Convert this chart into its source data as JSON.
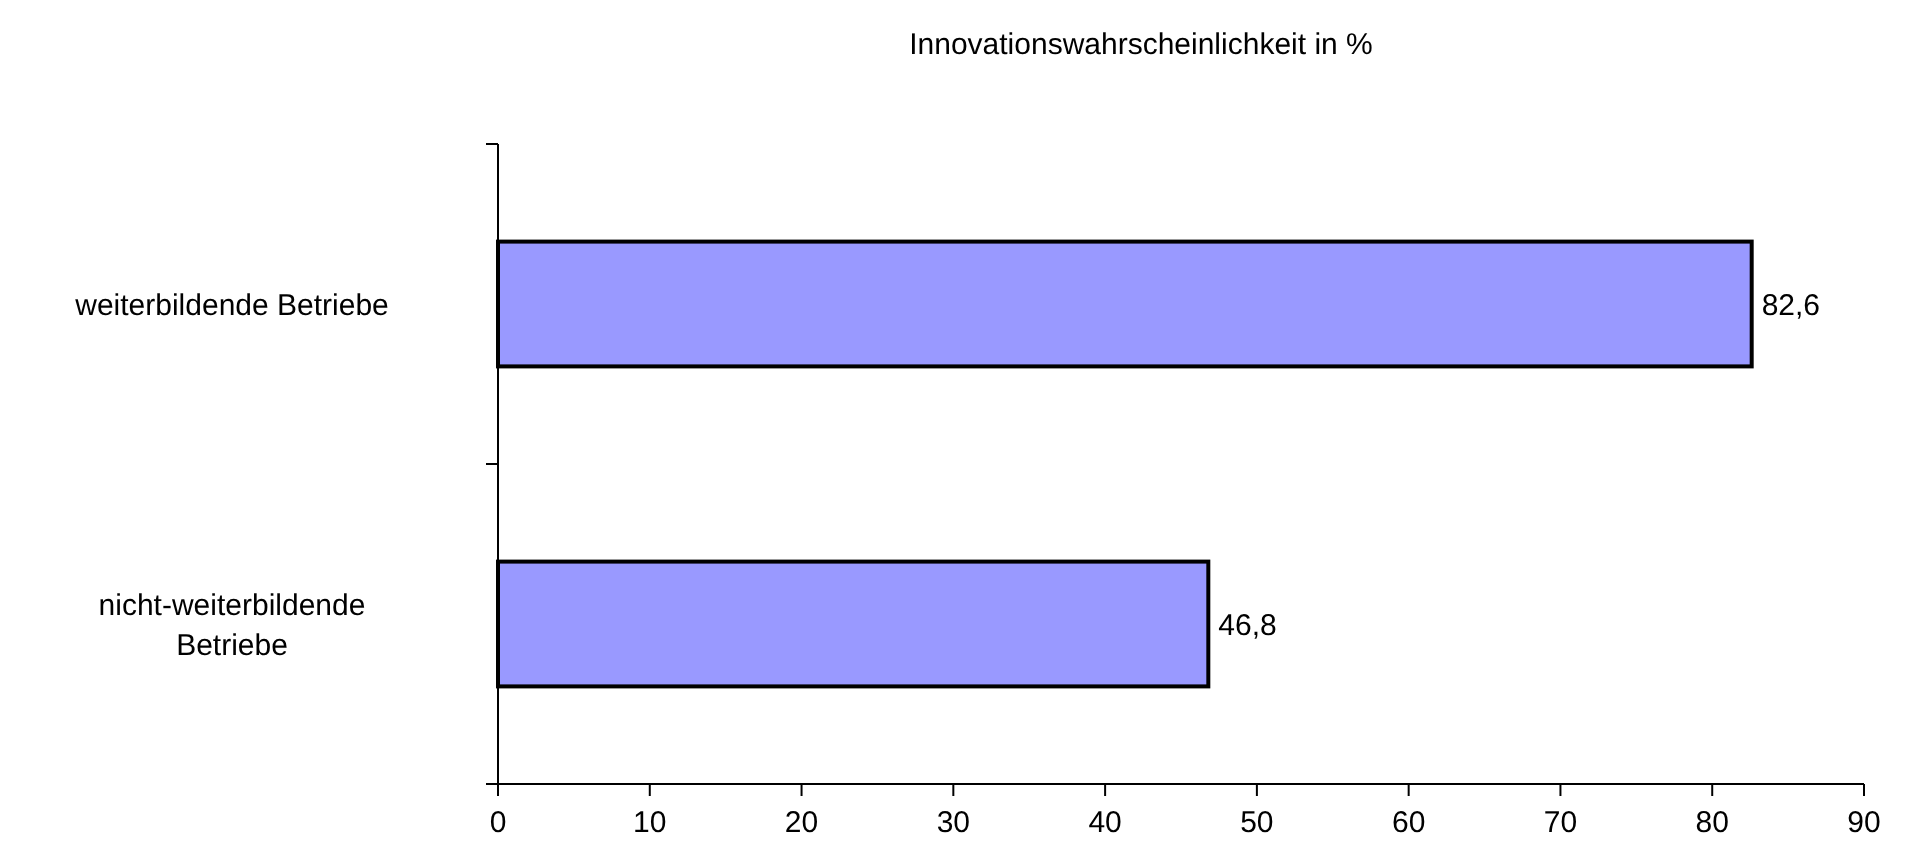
{
  "chart_data": {
    "type": "bar",
    "orientation": "horizontal",
    "title": "Innovationswahrscheinlichkeit in %",
    "categories": [
      "weiterbildende Betriebe",
      "nicht-weiterbildende Betriebe"
    ],
    "values": [
      82.6,
      46.8
    ],
    "value_labels": [
      "82,6",
      "46,8"
    ],
    "color": "#9999ff",
    "xlim": [
      0,
      90
    ],
    "xticks": [
      0,
      10,
      20,
      30,
      40,
      50,
      60,
      70,
      80,
      90
    ],
    "grid": false
  }
}
